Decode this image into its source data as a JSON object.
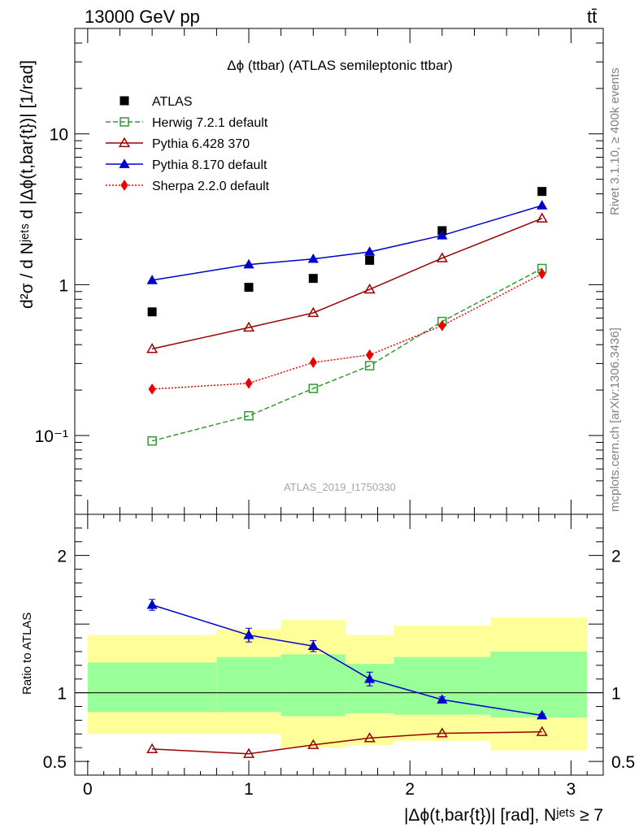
{
  "header": {
    "left": "13000 GeV pp",
    "right": "tt̄"
  },
  "side_labels": {
    "top": "Rivet 3.1.10, ≥ 400k events",
    "bottom": "mcplots.cern.ch [arXiv:1306.3436]"
  },
  "chart_data": [
    {
      "type": "line",
      "title": "Δϕ (ttbar) (ATLAS semileptonic ttbar)",
      "watermark": "ATLAS_2019_I1750330",
      "ylabel": "d²σ / d Nʲᵉᵗˢ d |Δϕ(t,bar{t})| [1/rad]",
      "yscale": "log",
      "ylim": [
        0.03,
        50
      ],
      "yticks": [
        {
          "value": 0.1,
          "label": "10⁻¹"
        },
        {
          "value": 1,
          "label": "1"
        },
        {
          "value": 10,
          "label": "10"
        }
      ],
      "xlim": [
        -0.08,
        3.2
      ],
      "x": [
        0.4,
        1.0,
        1.4,
        1.75,
        2.2,
        2.82
      ],
      "legend_position": "top-left",
      "series": [
        {
          "name": "ATLAS",
          "marker": "square-filled",
          "color": "#000000",
          "line": "none",
          "values": [
            0.66,
            0.96,
            1.1,
            1.45,
            2.28,
            4.15
          ]
        },
        {
          "name": "Herwig 7.2.1 default",
          "marker": "square-open",
          "color": "#339933",
          "line": "dashed",
          "values": [
            0.092,
            0.135,
            0.205,
            0.29,
            0.57,
            1.28
          ]
        },
        {
          "name": "Pythia 6.428 370",
          "marker": "triangle-open",
          "color": "#990000",
          "line": "solid",
          "values": [
            0.375,
            0.52,
            0.65,
            0.93,
            1.5,
            2.75
          ]
        },
        {
          "name": "Pythia 8.170 default",
          "marker": "triangle-filled",
          "color": "#0000cc",
          "line": "solid",
          "values": [
            1.07,
            1.36,
            1.48,
            1.65,
            2.12,
            3.35
          ]
        },
        {
          "name": "Sherpa 2.2.0 default",
          "marker": "diamond-filled",
          "color": "#ee0000",
          "line": "dotted",
          "values": [
            0.203,
            0.222,
            0.305,
            0.342,
            0.535,
            1.18
          ]
        }
      ]
    },
    {
      "type": "line",
      "ylabel": "Ratio to ATLAS",
      "xlabel": "|Δϕ(t,bar{t})| [rad], Nʲᵉᵗˢ ≥ 7",
      "ylim": [
        0.4,
        2.3
      ],
      "yticks": [
        {
          "value": 0.5,
          "label": "0.5"
        },
        {
          "value": 1,
          "label": "1"
        },
        {
          "value": 2,
          "label": "2"
        }
      ],
      "xlim": [
        -0.08,
        3.2
      ],
      "xticks": [
        {
          "value": 0,
          "label": "0"
        },
        {
          "value": 1,
          "label": "1"
        },
        {
          "value": 2,
          "label": "2"
        },
        {
          "value": 3,
          "label": "3"
        }
      ],
      "x": [
        0.4,
        1.0,
        1.4,
        1.75,
        2.2,
        2.82
      ],
      "bands": {
        "edges": [
          0.0,
          0.8,
          1.2,
          1.6,
          1.9,
          2.5,
          3.1
        ],
        "yellow": [
          [
            0.7,
            1.42
          ],
          [
            0.7,
            1.46
          ],
          [
            0.6,
            1.53
          ],
          [
            0.62,
            1.42
          ],
          [
            0.65,
            1.49
          ],
          [
            0.58,
            1.55
          ]
        ],
        "green": [
          [
            0.86,
            1.22
          ],
          [
            0.86,
            1.26
          ],
          [
            0.83,
            1.28
          ],
          [
            0.85,
            1.21
          ],
          [
            0.84,
            1.26
          ],
          [
            0.82,
            1.3
          ]
        ]
      },
      "reference_line": 1,
      "series": [
        {
          "name": "Pythia 8.170 default",
          "marker": "triangle-filled",
          "color": "#0000cc",
          "line": "solid",
          "values": [
            1.64,
            1.42,
            1.34,
            1.1,
            0.95,
            0.835
          ],
          "errors": [
            0.04,
            0.05,
            0.04,
            0.05,
            0.02,
            0.01
          ]
        },
        {
          "name": "Pythia 6.428 370",
          "marker": "triangle-open",
          "color": "#990000",
          "line": "solid",
          "values": [
            0.59,
            0.555,
            0.62,
            0.67,
            0.705,
            0.715
          ]
        }
      ]
    }
  ]
}
